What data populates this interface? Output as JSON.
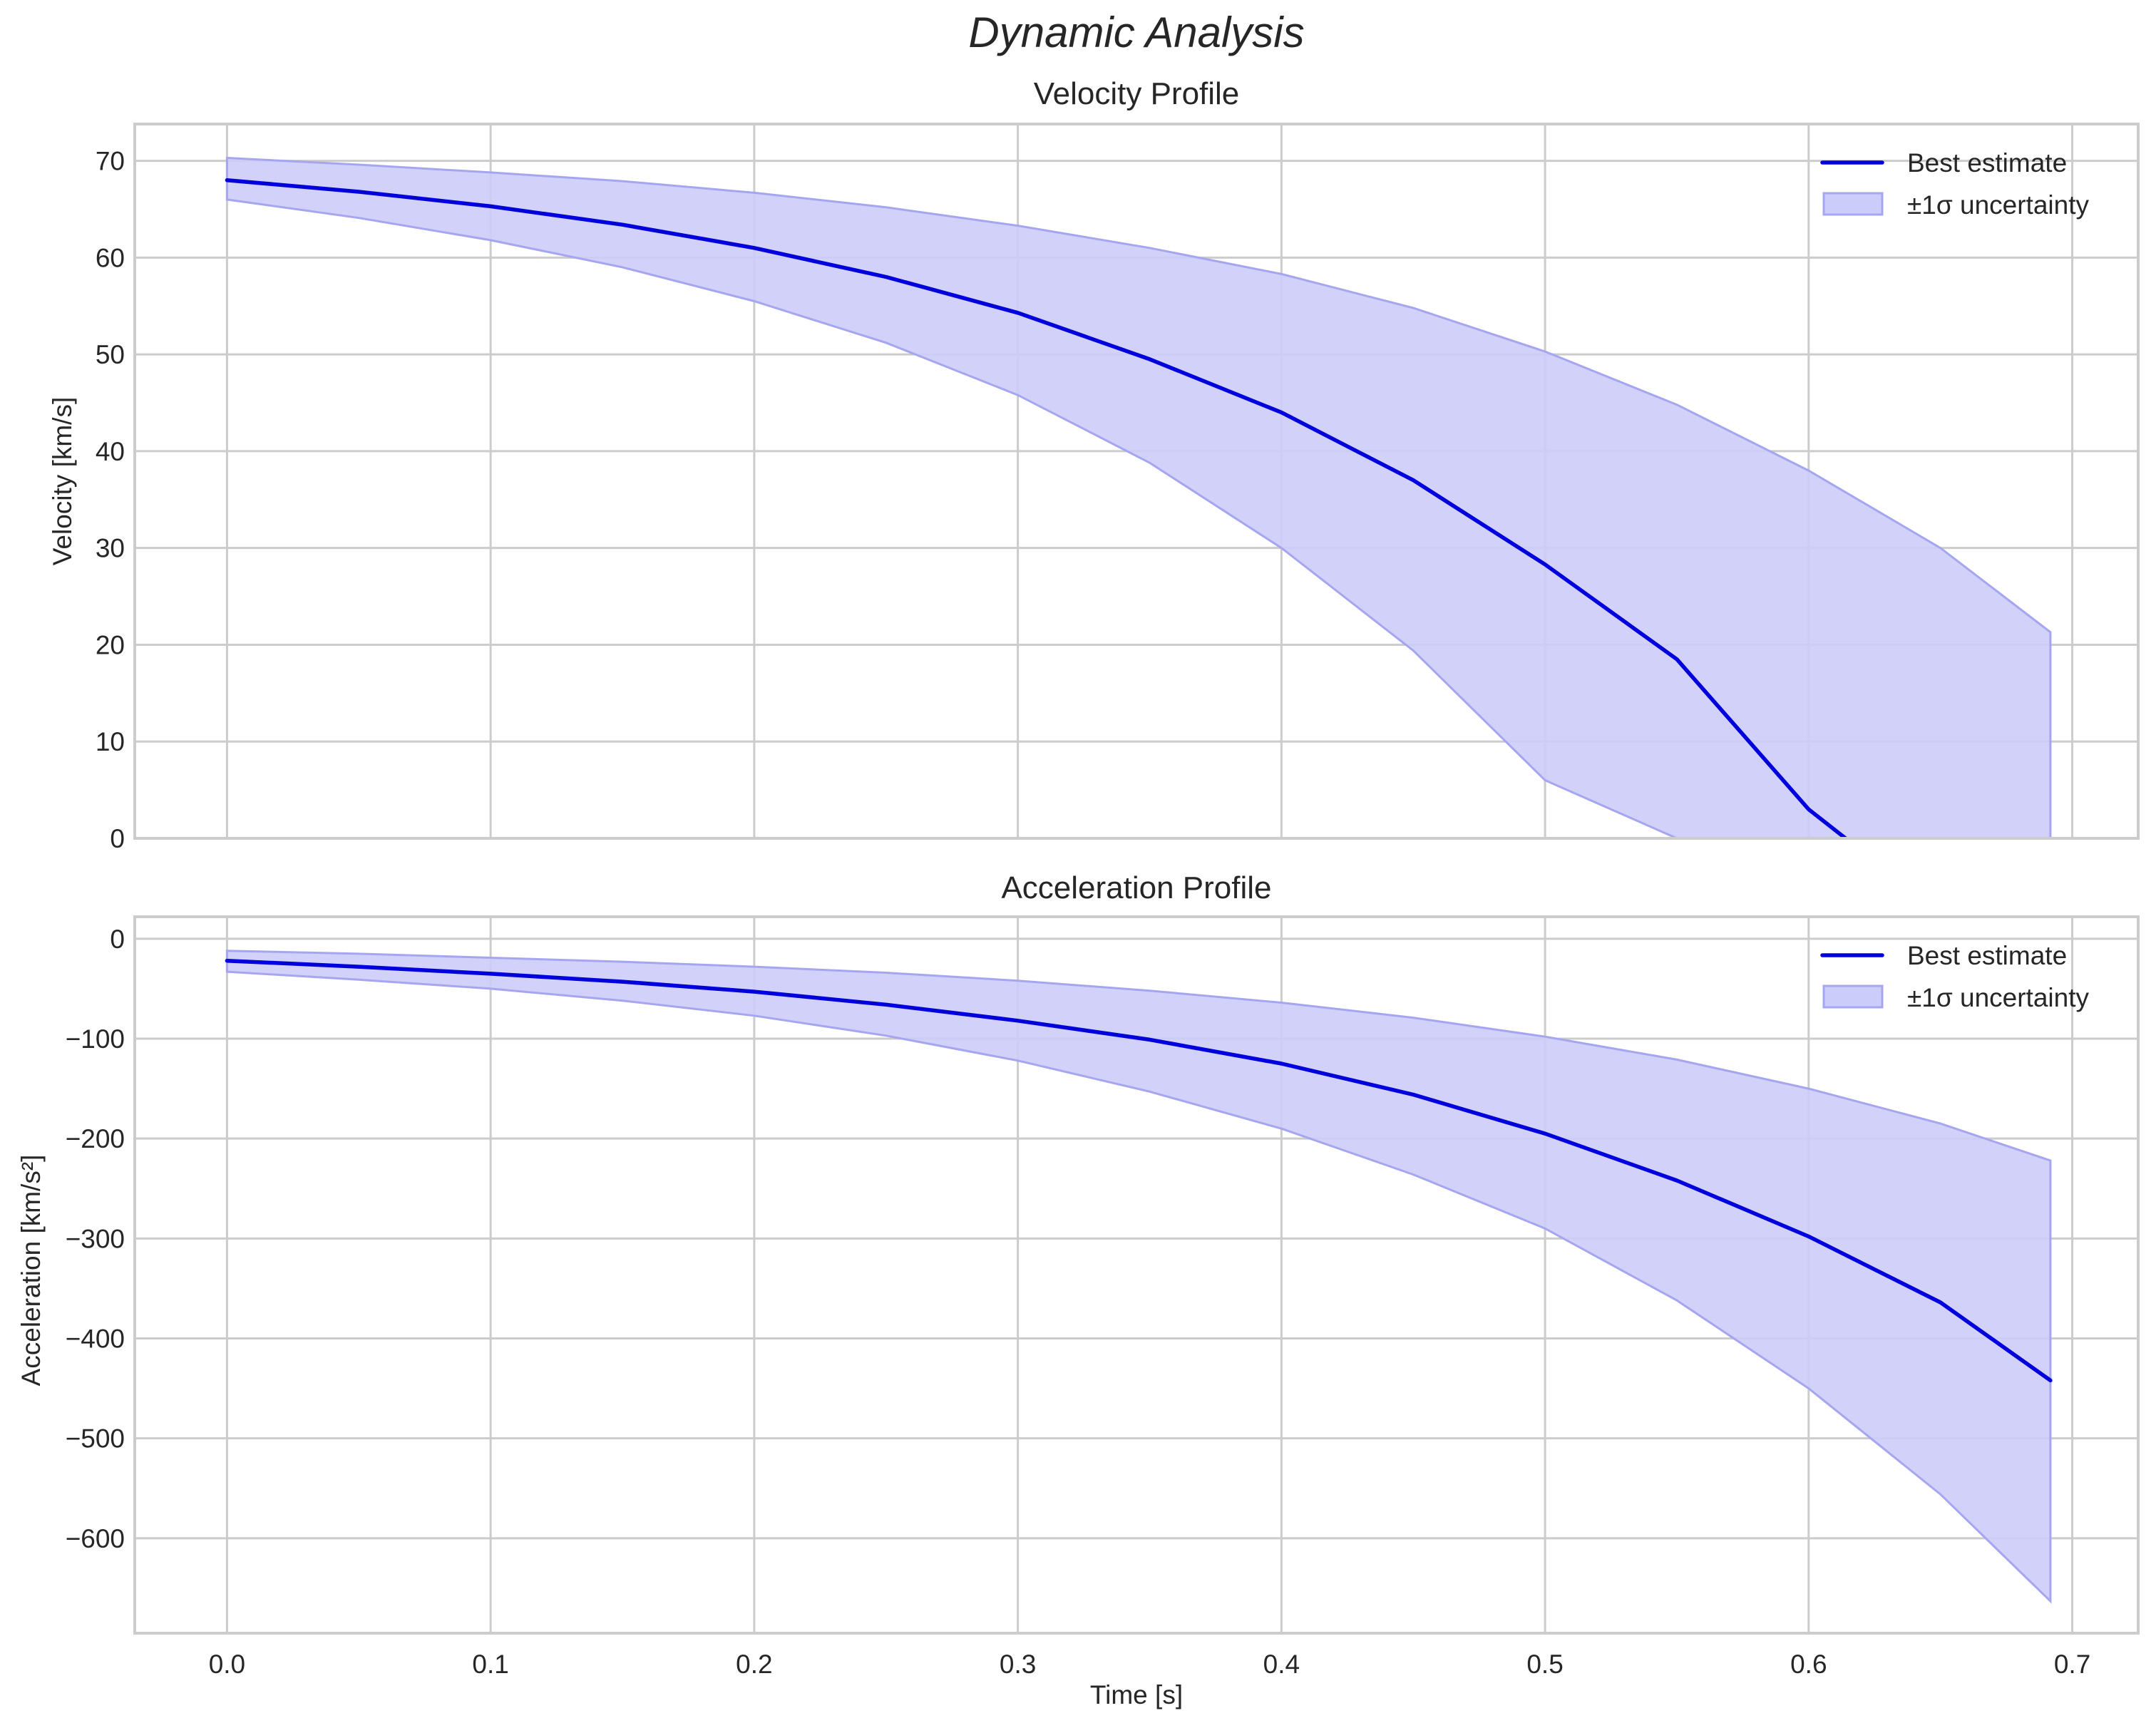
{
  "figure": {
    "suptitle": "Dynamic Analysis",
    "colors": {
      "line": "#0000dd",
      "band_fill": "#ccccfa",
      "band_edge": "#a6a6f0",
      "grid": "#cccccc",
      "spine": "#cccccc",
      "text": "#262626"
    }
  },
  "chart_data": [
    {
      "type": "line",
      "title": "Velocity Profile",
      "xlabel": "",
      "ylabel": "Velocity [km/s]",
      "xlim": [
        -0.035,
        0.725
      ],
      "ylim": [
        0,
        73.8
      ],
      "xticks": [
        0.0,
        0.1,
        0.2,
        0.3,
        0.4,
        0.5,
        0.6,
        0.7
      ],
      "xtick_labels": [
        "",
        "",
        "",
        "",
        "",
        "",
        "",
        ""
      ],
      "yticks": [
        0,
        10,
        20,
        30,
        40,
        50,
        60,
        70
      ],
      "ytick_labels": [
        "0",
        "10",
        "20",
        "30",
        "40",
        "50",
        "60",
        "70"
      ],
      "grid": true,
      "legend": {
        "position": "upper right",
        "entries": [
          "Best estimate",
          "±1σ uncertainty"
        ]
      },
      "series": [
        {
          "name": "Best estimate",
          "kind": "line",
          "x": [
            0.0,
            0.05,
            0.1,
            0.15,
            0.2,
            0.25,
            0.3,
            0.35,
            0.4,
            0.45,
            0.5,
            0.55,
            0.6,
            0.614
          ],
          "y": [
            68.0,
            66.8,
            65.3,
            63.4,
            61.0,
            58.0,
            54.3,
            49.5,
            44.0,
            37.0,
            28.3,
            18.5,
            3.0,
            0.0
          ]
        },
        {
          "name": "±1σ uncertainty",
          "kind": "band",
          "x": [
            0.0,
            0.05,
            0.1,
            0.15,
            0.2,
            0.25,
            0.3,
            0.35,
            0.4,
            0.45,
            0.5,
            0.55,
            0.6,
            0.65,
            0.6917
          ],
          "upper": [
            70.3,
            69.6,
            68.8,
            67.9,
            66.7,
            65.2,
            63.3,
            61.0,
            58.3,
            54.8,
            50.3,
            44.8,
            38.0,
            30.0,
            21.3
          ],
          "lower": [
            66.0,
            64.1,
            61.8,
            59.0,
            55.5,
            51.2,
            45.8,
            38.8,
            30.0,
            19.4,
            6.0,
            0.0,
            0.0,
            0.0,
            0.0
          ]
        }
      ]
    },
    {
      "type": "line",
      "title": "Acceleration Profile",
      "xlabel": "Time [s]",
      "ylabel": "Acceleration [km/s²]",
      "xlim": [
        -0.035,
        0.725
      ],
      "ylim": [
        -695,
        22
      ],
      "xticks": [
        0.0,
        0.1,
        0.2,
        0.3,
        0.4,
        0.5,
        0.6,
        0.7
      ],
      "xtick_labels": [
        "0.0",
        "0.1",
        "0.2",
        "0.3",
        "0.4",
        "0.5",
        "0.6",
        "0.7"
      ],
      "yticks": [
        0,
        -100,
        -200,
        -300,
        -400,
        -500,
        -600
      ],
      "ytick_labels": [
        "0",
        "−100",
        "−200",
        "−300",
        "−400",
        "−500",
        "−600"
      ],
      "grid": true,
      "legend": {
        "position": "upper right",
        "entries": [
          "Best estimate",
          "±1σ uncertainty"
        ]
      },
      "series": [
        {
          "name": "Best estimate",
          "kind": "line",
          "x": [
            0.0,
            0.05,
            0.1,
            0.15,
            0.2,
            0.25,
            0.3,
            0.35,
            0.4,
            0.45,
            0.5,
            0.55,
            0.6,
            0.65,
            0.6917
          ],
          "y": [
            -22,
            -28,
            -35,
            -43,
            -53,
            -66,
            -82,
            -101,
            -125,
            -156,
            -195,
            -242,
            -298,
            -364,
            -442
          ]
        },
        {
          "name": "±1σ uncertainty",
          "kind": "band",
          "x": [
            0.0,
            0.05,
            0.1,
            0.15,
            0.2,
            0.25,
            0.3,
            0.35,
            0.4,
            0.45,
            0.5,
            0.55,
            0.6,
            0.65,
            0.6917
          ],
          "upper": [
            -12,
            -15,
            -19,
            -23,
            -28,
            -34,
            -42,
            -52,
            -64,
            -79,
            -98,
            -121,
            -150,
            -185,
            -222
          ],
          "lower": [
            -33,
            -41,
            -50,
            -62,
            -77,
            -97,
            -122,
            -153,
            -190,
            -236,
            -290,
            -362,
            -450,
            -556,
            -663
          ]
        }
      ]
    }
  ]
}
